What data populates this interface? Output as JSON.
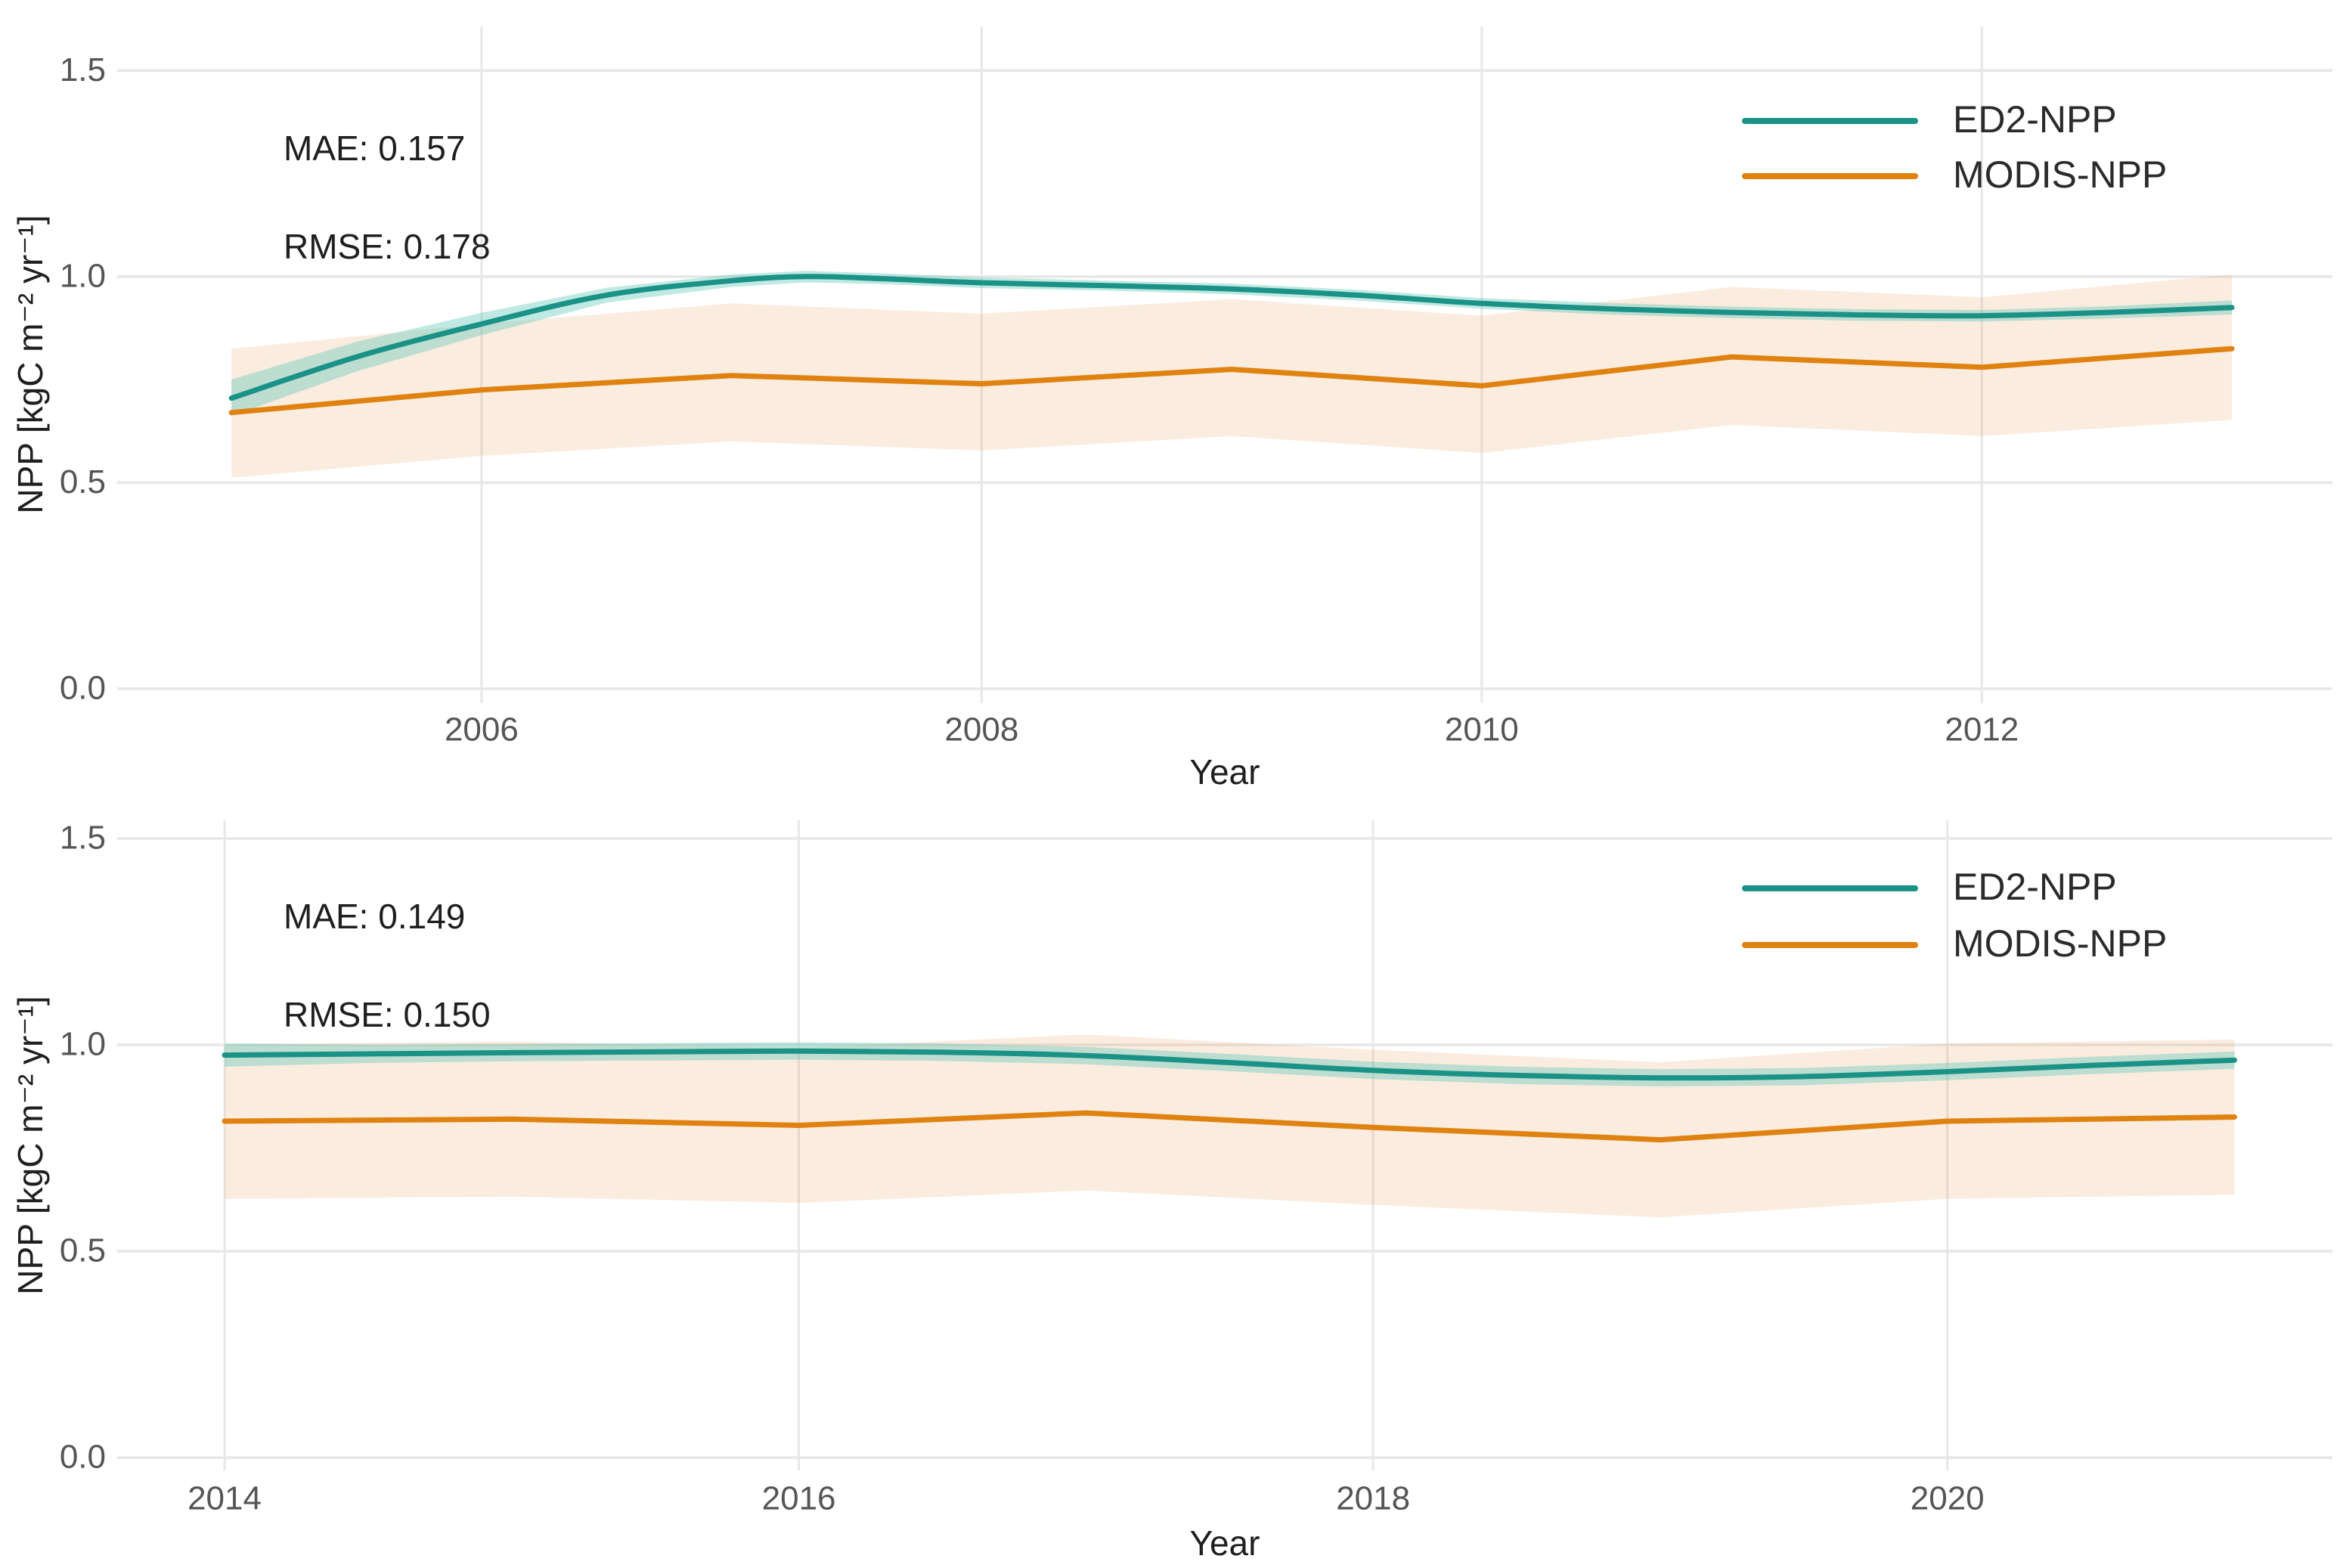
{
  "figure": {
    "colors": {
      "ed2_line": "#1b9287",
      "modis_line": "#e0820f",
      "ed2_band": "rgba(94,200,183,0.40)",
      "modis_band": "rgba(233,150,85,0.18)",
      "gridline": "#e7e7e7",
      "tick_text": "#555555",
      "label_text": "#1f1f1f",
      "legend_text": "#2b2b2b"
    },
    "legend": [
      "ED2-NPP",
      "MODIS-NPP"
    ]
  },
  "chart_data": [
    {
      "type": "line",
      "title": "",
      "xlabel": "Year",
      "ylabel": "NPP [kgC m⁻² yr⁻¹]",
      "annotations": {
        "mae": "MAE: 0.157",
        "rmse": "RMSE: 0.178"
      },
      "legend_entries": [
        "ED2-NPP",
        "MODIS-NPP"
      ],
      "legend_position": "top-right-inside",
      "grid": true,
      "xlim": [
        2004.543,
        2013.402
      ],
      "ylim": [
        -0.0349,
        1.6069
      ],
      "xticks": {
        "values": [
          2006,
          2008,
          2010,
          2012
        ],
        "labels": [
          "2006",
          "2008",
          "2010",
          "2012"
        ]
      },
      "yticks": {
        "values": [
          0,
          0.5,
          1.0,
          1.5
        ],
        "labels": [
          "0.0",
          "0.5",
          "1.0",
          "1.5"
        ]
      },
      "series": [
        {
          "name": "ED2-NPP",
          "color_key": "ed2_line",
          "band_key": "ed2_band",
          "smooth": true,
          "x": [
            2005,
            2005.5,
            2006,
            2006.5,
            2007,
            2007.3,
            2007.6,
            2008,
            2008.5,
            2009,
            2009.5,
            2010,
            2010.5,
            2011,
            2011.5,
            2012,
            2012.5,
            2013
          ],
          "y": [
            0.705,
            0.805,
            0.885,
            0.955,
            0.99,
            1.0,
            0.995,
            0.985,
            0.978,
            0.97,
            0.955,
            0.935,
            0.922,
            0.913,
            0.907,
            0.905,
            0.913,
            0.925
          ],
          "band_upper": [
            0.75,
            0.842,
            0.912,
            0.973,
            1.005,
            1.014,
            1.008,
            0.998,
            0.99,
            0.983,
            0.968,
            0.948,
            0.936,
            0.927,
            0.921,
            0.919,
            0.928,
            0.942
          ],
          "band_lower": [
            0.662,
            0.77,
            0.858,
            0.937,
            0.975,
            0.986,
            0.982,
            0.972,
            0.966,
            0.957,
            0.942,
            0.922,
            0.908,
            0.899,
            0.893,
            0.891,
            0.898,
            0.908
          ]
        },
        {
          "name": "MODIS-NPP",
          "color_key": "modis_line",
          "band_key": "modis_band",
          "smooth": false,
          "x": [
            2005,
            2006,
            2007,
            2008,
            2009,
            2010,
            2011,
            2012,
            2013
          ],
          "y": [
            0.67,
            0.725,
            0.76,
            0.74,
            0.775,
            0.735,
            0.805,
            0.78,
            0.825
          ],
          "band_upper": [
            0.825,
            0.885,
            0.935,
            0.91,
            0.945,
            0.905,
            0.975,
            0.95,
            1.005
          ],
          "band_lower": [
            0.512,
            0.565,
            0.6,
            0.578,
            0.613,
            0.572,
            0.64,
            0.613,
            0.652
          ]
        }
      ]
    },
    {
      "type": "line",
      "title": "",
      "xlabel": "Year",
      "ylabel": "NPP [kgC m⁻² yr⁻¹]",
      "annotations": {
        "mae": "MAE: 0.149",
        "rmse": "RMSE: 0.150"
      },
      "legend_entries": [
        "ED2-NPP",
        "MODIS-NPP"
      ],
      "legend_position": "top-right-inside",
      "grid": true,
      "xlim": [
        2013.626,
        2021.341
      ],
      "ylim": [
        -0.0311,
        1.5439
      ],
      "xticks": {
        "values": [
          2014,
          2016,
          2018,
          2020
        ],
        "labels": [
          "2014",
          "2016",
          "2018",
          "2020"
        ]
      },
      "yticks": {
        "values": [
          0,
          0.5,
          1.0,
          1.5
        ],
        "labels": [
          "0.0",
          "0.5",
          "1.0",
          "1.5"
        ]
      },
      "series": [
        {
          "name": "ED2-NPP",
          "color_key": "ed2_line",
          "band_key": "ed2_band",
          "smooth": true,
          "x": [
            2014,
            2014.5,
            2015,
            2015.5,
            2016,
            2016.5,
            2017,
            2017.5,
            2018,
            2018.5,
            2019,
            2019.5,
            2020,
            2020.5,
            2021
          ],
          "y": [
            0.975,
            0.978,
            0.981,
            0.983,
            0.985,
            0.982,
            0.974,
            0.957,
            0.938,
            0.926,
            0.92,
            0.923,
            0.935,
            0.95,
            0.963
          ],
          "band_upper": [
            1.003,
            1.0,
            1.002,
            1.004,
            1.006,
            1.003,
            0.995,
            0.978,
            0.959,
            0.947,
            0.941,
            0.944,
            0.956,
            0.971,
            0.984
          ],
          "band_lower": [
            0.947,
            0.956,
            0.96,
            0.962,
            0.964,
            0.961,
            0.953,
            0.936,
            0.917,
            0.905,
            0.899,
            0.902,
            0.914,
            0.929,
            0.942
          ]
        },
        {
          "name": "MODIS-NPP",
          "color_key": "modis_line",
          "band_key": "modis_band",
          "smooth": false,
          "x": [
            2014,
            2015,
            2016,
            2017,
            2018,
            2019,
            2020,
            2021
          ],
          "y": [
            0.815,
            0.82,
            0.805,
            0.835,
            0.8,
            0.77,
            0.815,
            0.825
          ],
          "band_upper": [
            1.0,
            1.008,
            0.993,
            1.025,
            0.988,
            0.958,
            1.003,
            1.013
          ],
          "band_lower": [
            0.627,
            0.632,
            0.617,
            0.647,
            0.612,
            0.582,
            0.627,
            0.637
          ]
        }
      ]
    }
  ]
}
